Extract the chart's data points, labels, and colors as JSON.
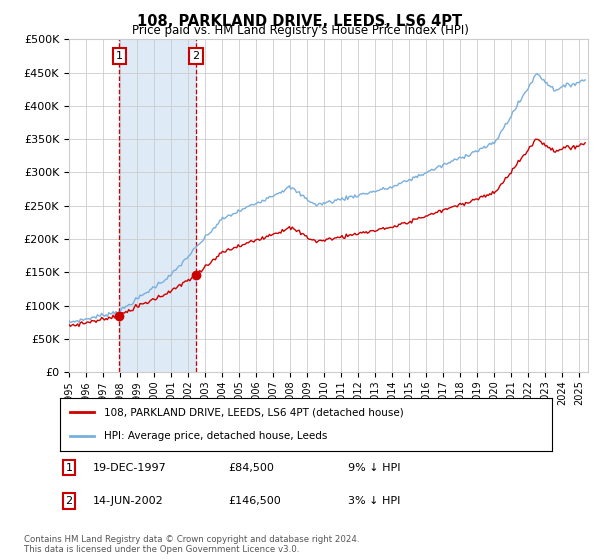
{
  "title": "108, PARKLAND DRIVE, LEEDS, LS6 4PT",
  "subtitle": "Price paid vs. HM Land Registry's House Price Index (HPI)",
  "ylabel_ticks": [
    "£0",
    "£50K",
    "£100K",
    "£150K",
    "£200K",
    "£250K",
    "£300K",
    "£350K",
    "£400K",
    "£450K",
    "£500K"
  ],
  "ylim": [
    0,
    500000
  ],
  "xlim_start": 1995.0,
  "xlim_end": 2025.5,
  "transaction1_date": 1997.96,
  "transaction1_price": 84500,
  "transaction2_date": 2002.45,
  "transaction2_price": 146500,
  "line1_label": "108, PARKLAND DRIVE, LEEDS, LS6 4PT (detached house)",
  "line2_label": "HPI: Average price, detached house, Leeds",
  "line1_color": "#cc0000",
  "line2_color": "#7aafdd",
  "shading_color": "#deeaf5",
  "marker_color": "#cc0000",
  "grid_color": "#cccccc",
  "bg_color": "#ffffff",
  "footer": "Contains HM Land Registry data © Crown copyright and database right 2024.\nThis data is licensed under the Open Government Licence v3.0.",
  "dashed_line_color": "#cc0000",
  "box_color": "#cc0000",
  "transaction1_row": "19-DEC-1997",
  "transaction1_price_str": "£84,500",
  "transaction1_hpi": "9% ↓ HPI",
  "transaction2_row": "14-JUN-2002",
  "transaction2_price_str": "£146,500",
  "transaction2_hpi": "3% ↓ HPI"
}
